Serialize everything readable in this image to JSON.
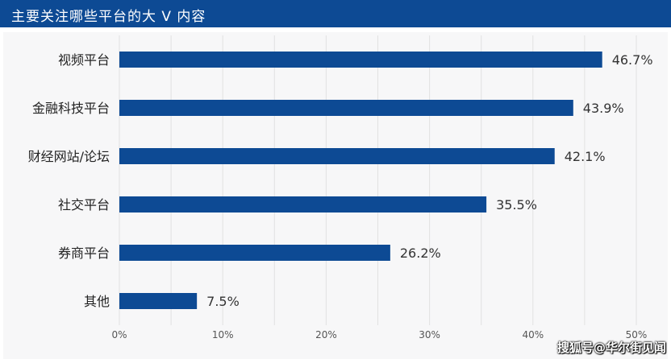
{
  "header": {
    "title": "主要关注哪些平台的大 V 内容"
  },
  "watermark": "搜狐号@华尔街见闻",
  "colors": {
    "header_bg": "#0d4a94",
    "bar": "#0d4a94"
  },
  "chart_data": {
    "type": "bar",
    "orientation": "horizontal",
    "categories": [
      "视频平台",
      "金融科技平台",
      "财经网站/论坛",
      "社交平台",
      "券商平台",
      "其他"
    ],
    "values": [
      46.7,
      43.9,
      42.1,
      35.5,
      26.2,
      7.5
    ],
    "value_labels": [
      "46.7%",
      "43.9%",
      "42.1%",
      "35.5%",
      "26.2%",
      "7.5%"
    ],
    "x_ticks": [
      "0%",
      "10%",
      "20%",
      "30%",
      "40%",
      "50%"
    ],
    "xlim": [
      0,
      50
    ],
    "grid": true
  }
}
